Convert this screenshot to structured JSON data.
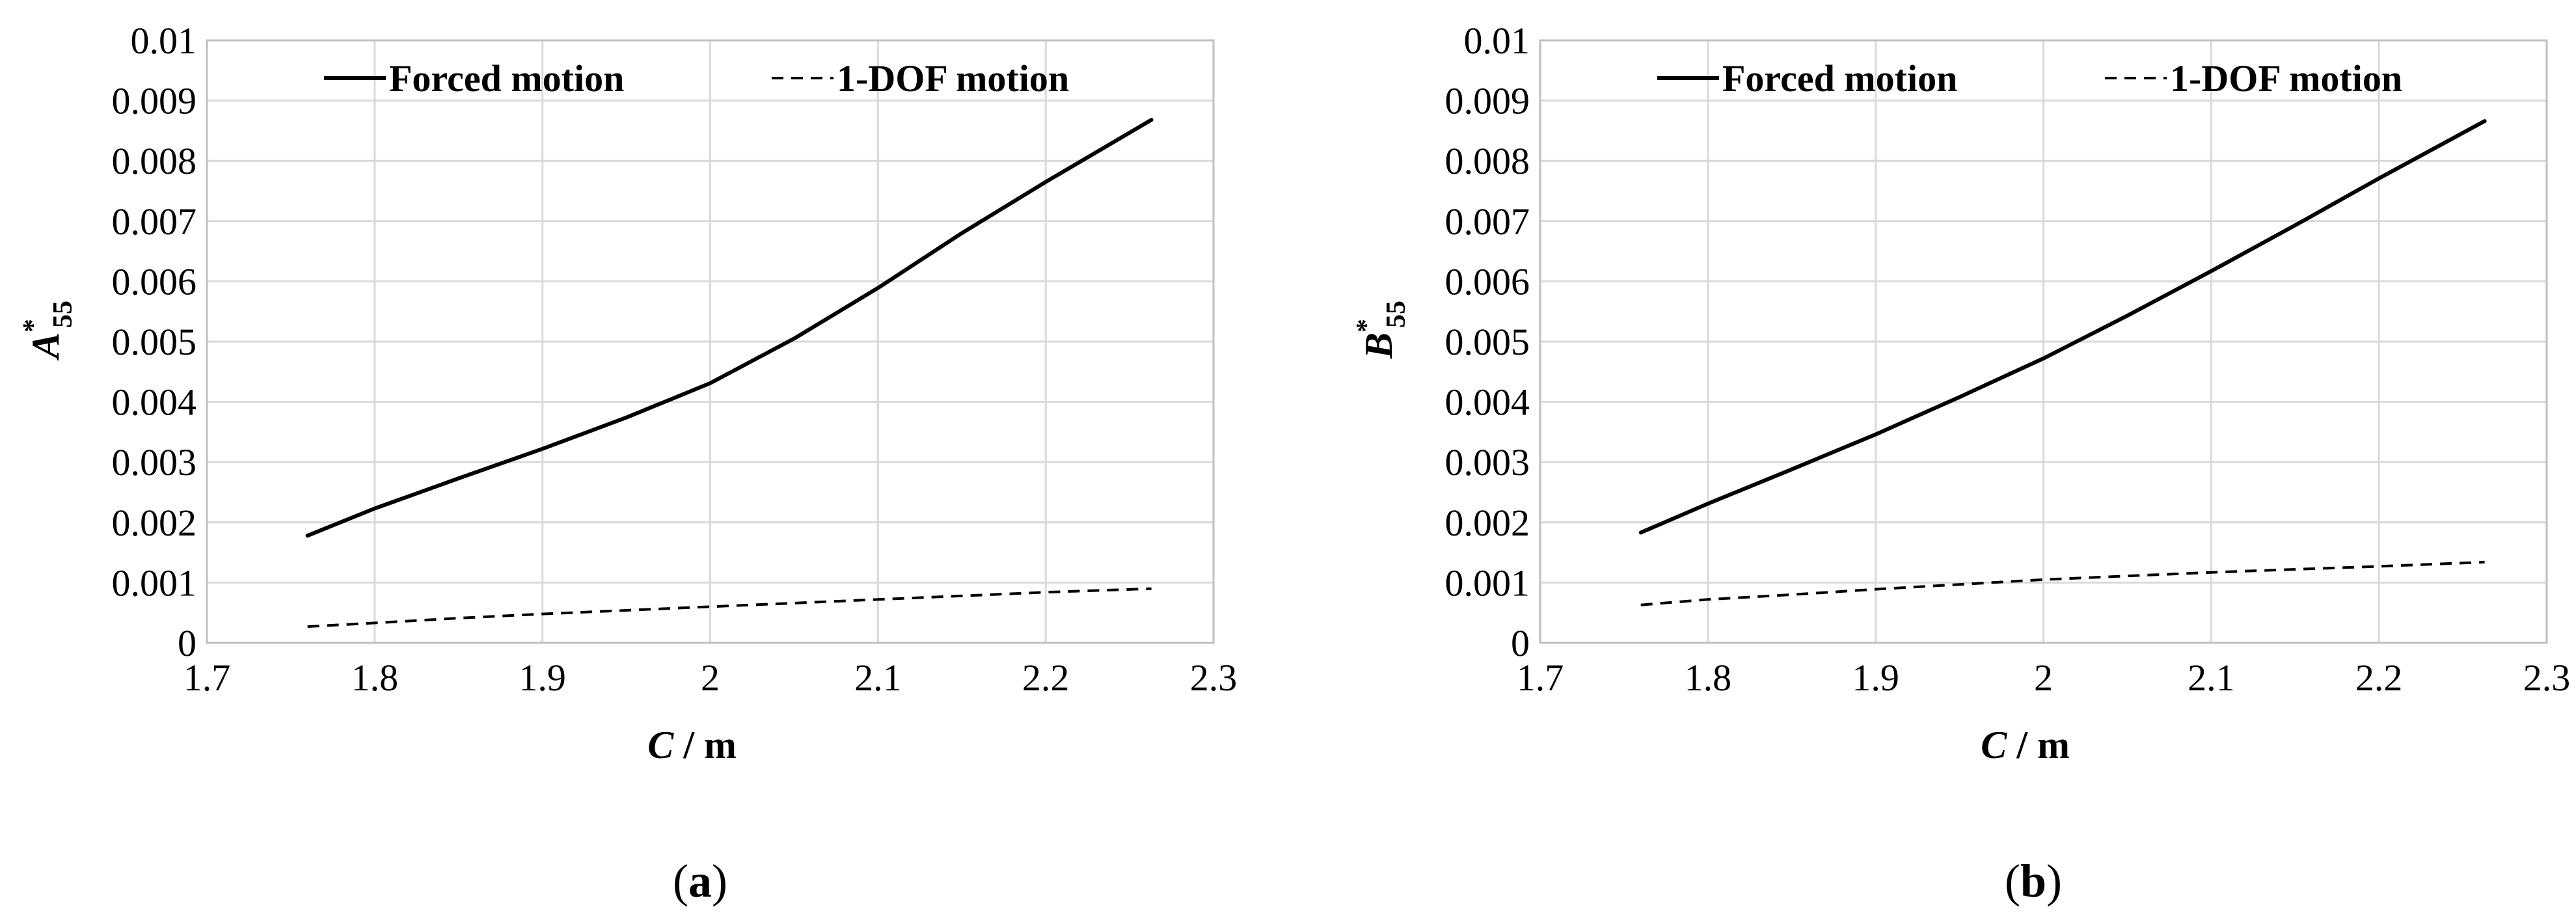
{
  "chart_data": [
    {
      "type": "line",
      "panel_label": "a",
      "ylabel": {
        "main": "A",
        "sup": "*",
        "sub": "55"
      },
      "xlabel": {
        "main": "C",
        "unit": " / m"
      },
      "xlim": [
        1.7,
        2.3
      ],
      "ylim": [
        0,
        0.01
      ],
      "xticks": [
        "1.7",
        "1.8",
        "1.9",
        "2",
        "2.1",
        "2.2",
        "2.3"
      ],
      "yticks": [
        "0",
        "0.001",
        "0.002",
        "0.003",
        "0.004",
        "0.005",
        "0.006",
        "0.007",
        "0.008",
        "0.009",
        "0.01"
      ],
      "grid": true,
      "legend_position": "top",
      "series": [
        {
          "name": "Forced motion",
          "style": "solid",
          "x": [
            1.76,
            1.8,
            1.85,
            1.9,
            1.95,
            2.0,
            2.05,
            2.1,
            2.15,
            2.2,
            2.263
          ],
          "y": [
            0.00178,
            0.00223,
            0.00273,
            0.00322,
            0.00374,
            0.00431,
            0.00505,
            0.00589,
            0.0068,
            0.00765,
            0.00868
          ]
        },
        {
          "name": "1-DOF motion",
          "style": "dashed",
          "x": [
            1.76,
            1.8,
            1.85,
            1.9,
            1.95,
            2.0,
            2.05,
            2.1,
            2.15,
            2.2,
            2.263
          ],
          "y": [
            0.00027,
            0.00033,
            0.00041,
            0.00048,
            0.00054,
            0.0006,
            0.00066,
            0.00072,
            0.00078,
            0.00084,
            0.0009
          ]
        }
      ]
    },
    {
      "type": "line",
      "panel_label": "b",
      "ylabel": {
        "main": "B",
        "sup": "*",
        "sub": "55"
      },
      "xlabel": {
        "main": "C",
        "unit": " / m"
      },
      "xlim": [
        1.7,
        2.3
      ],
      "ylim": [
        0,
        0.01
      ],
      "xticks": [
        "1.7",
        "1.8",
        "1.9",
        "2",
        "2.1",
        "2.2",
        "2.3"
      ],
      "yticks": [
        "0",
        "0.001",
        "0.002",
        "0.003",
        "0.004",
        "0.005",
        "0.006",
        "0.007",
        "0.008",
        "0.009",
        "0.01"
      ],
      "grid": true,
      "legend_position": "top",
      "series": [
        {
          "name": "Forced motion",
          "style": "solid",
          "x": [
            1.76,
            1.8,
            1.85,
            1.9,
            1.95,
            2.0,
            2.05,
            2.1,
            2.15,
            2.2,
            2.263
          ],
          "y": [
            0.00183,
            0.00231,
            0.00288,
            0.00346,
            0.00408,
            0.00472,
            0.00543,
            0.00617,
            0.00693,
            0.00771,
            0.00866
          ]
        },
        {
          "name": "1-DOF motion",
          "style": "dashed",
          "x": [
            1.76,
            1.8,
            1.85,
            1.9,
            1.95,
            2.0,
            2.05,
            2.1,
            2.15,
            2.2,
            2.263
          ],
          "y": [
            0.00063,
            0.00072,
            0.0008,
            0.00089,
            0.00097,
            0.00105,
            0.00111,
            0.00117,
            0.00122,
            0.00127,
            0.00134
          ]
        }
      ]
    }
  ]
}
